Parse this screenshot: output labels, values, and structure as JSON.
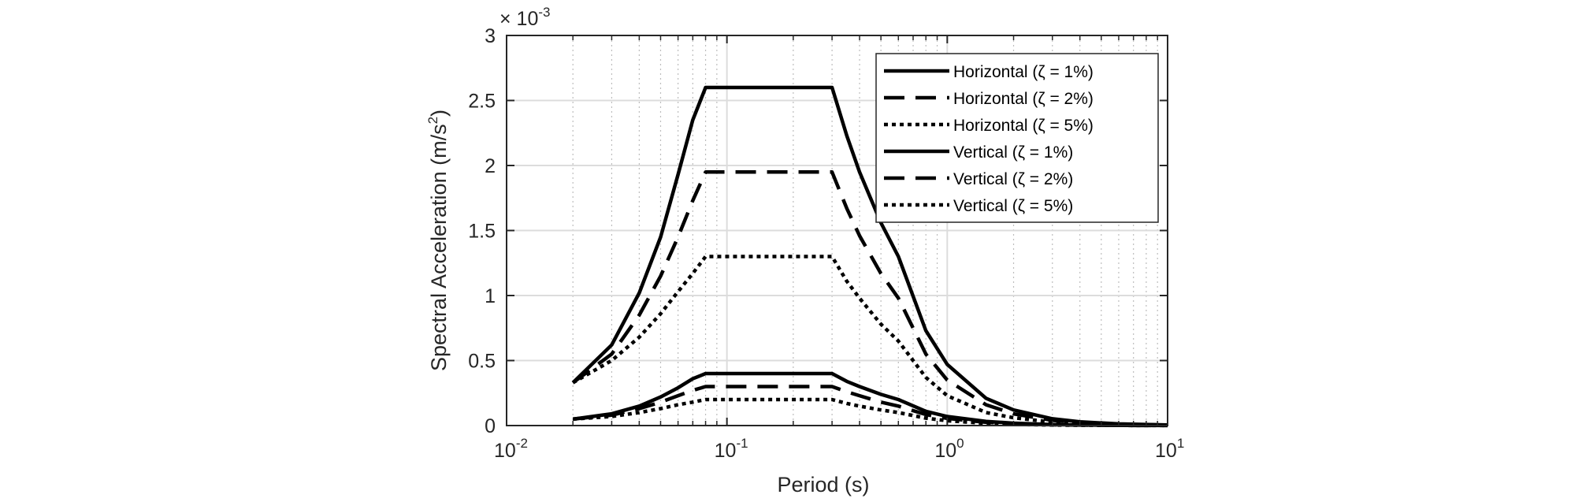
{
  "chart_data": {
    "type": "line",
    "title": "",
    "xlabel": "Period (s)",
    "ylabel_main": "Spectral Acceleration (m/s",
    "ylabel_sup": "2",
    "ylabel_close": ")",
    "y_multiplier": {
      "base": "× 10",
      "exponent": "-3"
    },
    "xscale": "log",
    "xlim": [
      0.01,
      10
    ],
    "ylim": [
      0,
      3
    ],
    "grid": true,
    "legend_position": "top-right",
    "x_ticks": [
      {
        "base": "10",
        "exp": "-2"
      },
      {
        "base": "10",
        "exp": "-1"
      },
      {
        "base": "10",
        "exp": "0"
      },
      {
        "base": "10",
        "exp": "1"
      }
    ],
    "y_ticks": [
      "0",
      "0.5",
      "1",
      "1.5",
      "2",
      "2.5",
      "3"
    ],
    "series": [
      {
        "name": "Horizontal (ζ = 1%)",
        "style": "solid",
        "x": [
          0.02,
          0.03,
          0.04,
          0.05,
          0.06,
          0.07,
          0.08,
          0.3,
          0.35,
          0.4,
          0.5,
          0.6,
          0.8,
          1,
          1.5,
          2,
          3,
          4,
          6,
          10
        ],
        "y": [
          0.33,
          0.62,
          1.02,
          1.45,
          1.93,
          2.35,
          2.6,
          2.6,
          2.23,
          1.95,
          1.56,
          1.3,
          0.73,
          0.47,
          0.21,
          0.12,
          0.052,
          0.029,
          0.013,
          0.005
        ]
      },
      {
        "name": "Horizontal (ζ = 2%)",
        "style": "dashed",
        "x": [
          0.02,
          0.03,
          0.04,
          0.05,
          0.06,
          0.07,
          0.08,
          0.3,
          0.35,
          0.4,
          0.5,
          0.6,
          0.8,
          1,
          1.5,
          2,
          3,
          4,
          6,
          10
        ],
        "y": [
          0.33,
          0.55,
          0.85,
          1.15,
          1.45,
          1.73,
          1.95,
          1.95,
          1.67,
          1.46,
          1.17,
          0.98,
          0.55,
          0.35,
          0.16,
          0.09,
          0.04,
          0.022,
          0.01,
          0.004
        ]
      },
      {
        "name": "Horizontal (ζ = 5%)",
        "style": "dotted",
        "x": [
          0.02,
          0.03,
          0.04,
          0.05,
          0.06,
          0.07,
          0.08,
          0.3,
          0.35,
          0.4,
          0.5,
          0.6,
          0.8,
          1,
          1.5,
          2,
          3,
          4,
          6,
          10
        ],
        "y": [
          0.33,
          0.5,
          0.68,
          0.86,
          1.03,
          1.17,
          1.3,
          1.3,
          1.11,
          0.98,
          0.78,
          0.65,
          0.37,
          0.23,
          0.1,
          0.06,
          0.026,
          0.015,
          0.007,
          0.003
        ]
      },
      {
        "name": "Vertical (ζ = 1%)",
        "style": "solid",
        "x": [
          0.02,
          0.03,
          0.04,
          0.05,
          0.06,
          0.07,
          0.08,
          0.3,
          0.35,
          0.4,
          0.5,
          0.6,
          0.8,
          1,
          1.5,
          2,
          3,
          4,
          6,
          10
        ],
        "y": [
          0.05,
          0.09,
          0.15,
          0.22,
          0.29,
          0.36,
          0.4,
          0.4,
          0.34,
          0.3,
          0.24,
          0.2,
          0.11,
          0.07,
          0.032,
          0.018,
          0.008,
          0.0045,
          0.002,
          0.0008
        ]
      },
      {
        "name": "Vertical (ζ = 2%)",
        "style": "dashed",
        "x": [
          0.02,
          0.03,
          0.04,
          0.05,
          0.06,
          0.07,
          0.08,
          0.3,
          0.35,
          0.4,
          0.5,
          0.6,
          0.8,
          1,
          1.5,
          2,
          3,
          4,
          6,
          10
        ],
        "y": [
          0.05,
          0.08,
          0.13,
          0.18,
          0.23,
          0.27,
          0.3,
          0.3,
          0.26,
          0.23,
          0.18,
          0.15,
          0.085,
          0.055,
          0.025,
          0.014,
          0.006,
          0.0035,
          0.0015,
          0.0006
        ]
      },
      {
        "name": "Vertical (ζ = 5%)",
        "style": "dotted",
        "x": [
          0.02,
          0.03,
          0.04,
          0.05,
          0.06,
          0.07,
          0.08,
          0.3,
          0.35,
          0.4,
          0.5,
          0.6,
          0.8,
          1,
          1.5,
          2,
          3,
          4,
          6,
          10
        ],
        "y": [
          0.05,
          0.07,
          0.1,
          0.13,
          0.16,
          0.18,
          0.2,
          0.2,
          0.17,
          0.15,
          0.12,
          0.1,
          0.057,
          0.037,
          0.017,
          0.009,
          0.004,
          0.0023,
          0.001,
          0.0004
        ]
      }
    ]
  }
}
